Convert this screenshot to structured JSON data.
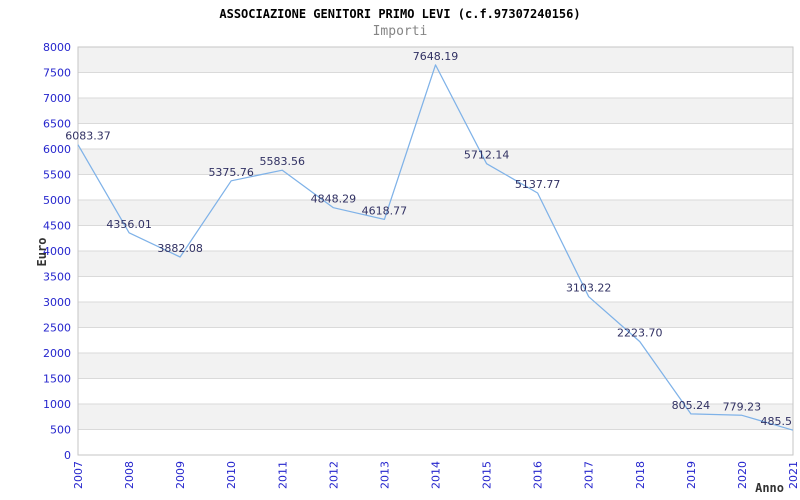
{
  "chart_data": {
    "type": "line",
    "title": "ASSOCIAZIONE GENITORI PRIMO LEVI (c.f.97307240156)",
    "subtitle": "Importi",
    "xlabel": "Anno",
    "ylabel": "Euro",
    "categories": [
      "2007",
      "2008",
      "2009",
      "2010",
      "2011",
      "2012",
      "2013",
      "2014",
      "2015",
      "2016",
      "2017",
      "2018",
      "2019",
      "2020",
      "2021"
    ],
    "values": [
      6083.37,
      4356.01,
      3882.08,
      5375.76,
      5583.56,
      4848.29,
      4618.77,
      7648.19,
      5712.14,
      5137.77,
      3103.22,
      2223.7,
      805.24,
      779.23,
      485.5
    ],
    "point_labels": [
      "6083.37",
      "4356.01",
      "3882.08",
      "5375.76",
      "5583.56",
      "4848.29",
      "4618.77",
      "7648.19",
      "5712.14",
      "5137.77",
      "3103.22",
      "2223.70",
      "805.24",
      "779.23",
      "485.5"
    ],
    "ylim": [
      0,
      8000
    ],
    "ytick_step": 500,
    "grid": true,
    "legend": "none",
    "band_fill_alternate": true,
    "colors": {
      "line": "#7fb2e8",
      "tick_label": "#2525cd",
      "point_label": "#313163",
      "band": "#f2f2f2",
      "grid": "#dadada",
      "border": "#c6c6c6",
      "title": "#000000",
      "subtitle": "#858585",
      "axis_title": "#333333",
      "background": "#ffffff"
    }
  }
}
